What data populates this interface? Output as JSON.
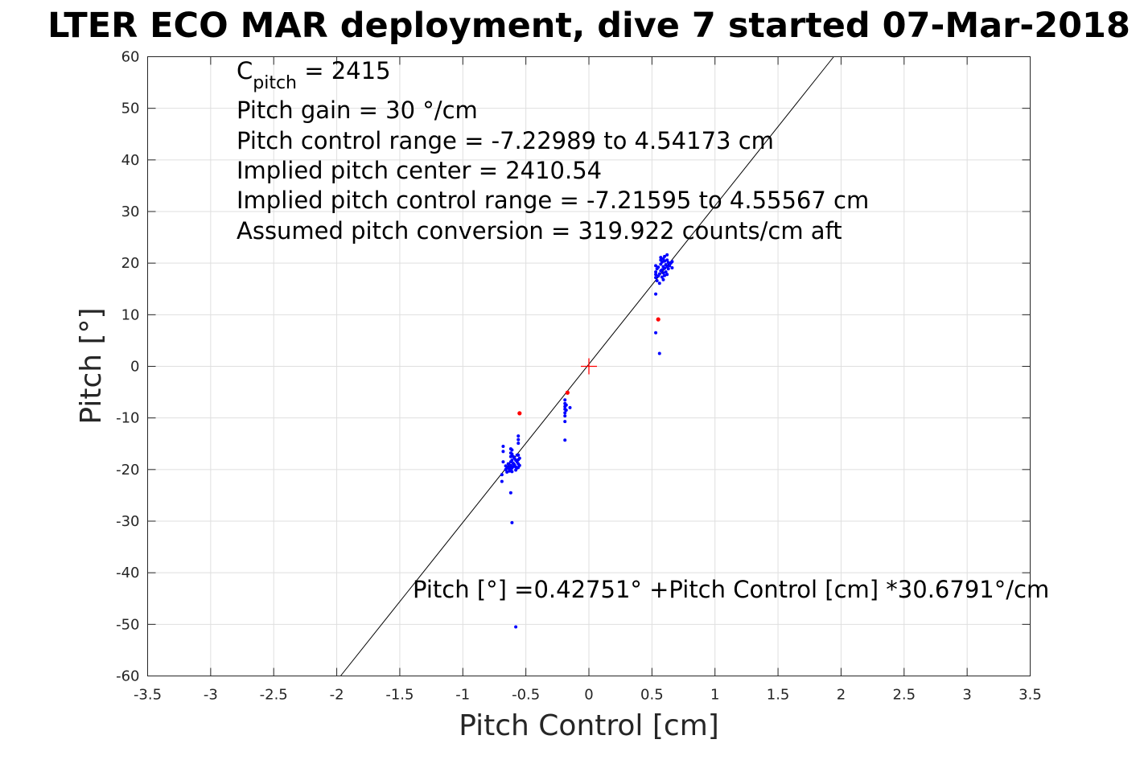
{
  "chart_data": {
    "type": "scatter",
    "title": "LTER ECO MAR deployment, dive 7 started 07-Mar-2018",
    "xlabel": "Pitch Control [cm]",
    "ylabel": "Pitch [°]",
    "xlim": [
      -3.5,
      3.5
    ],
    "ylim": [
      -60,
      60
    ],
    "xticks": [
      -3.5,
      -3,
      -2.5,
      -2,
      -1.5,
      -1,
      -0.5,
      0,
      0.5,
      1,
      1.5,
      2,
      2.5,
      3,
      3.5
    ],
    "xtick_labels": [
      "-3.5",
      "-3",
      "-2.5",
      "-2",
      "-1.5",
      "-1",
      "-0.5",
      "0",
      "0.5",
      "1",
      "1.5",
      "2",
      "2.5",
      "3",
      "3.5"
    ],
    "yticks": [
      -60,
      -50,
      -40,
      -30,
      -20,
      -10,
      0,
      10,
      20,
      30,
      40,
      50,
      60
    ],
    "ytick_labels": [
      "-60",
      "-50",
      "-40",
      "-30",
      "-20",
      "-10",
      "0",
      "10",
      "20",
      "30",
      "40",
      "50",
      "60"
    ],
    "grid": true,
    "annotations": {
      "c_pitch_base": "C",
      "c_pitch_sub": "pitch",
      "c_pitch_rest": " = 2415",
      "line2": "Pitch gain = 30 °/cm",
      "line3": "Pitch control range = -7.22989 to 4.54173 cm",
      "line4": "Implied pitch center = 2410.54",
      "line5": "Implied pitch control range = -7.21595 to 4.55567 cm",
      "line6": "Assumed pitch conversion = 319.922 counts/cm aft",
      "fit_equation": "Pitch [°] =0.42751° +Pitch Control [cm] *30.6791°/cm"
    },
    "fit": {
      "intercept": 0.42751,
      "slope": 30.6791
    },
    "center_marker": {
      "x": 0,
      "y": 0,
      "color": "#ff0000"
    },
    "series": [
      {
        "color": "#0000ff",
        "points": [
          [
            -0.68,
            -15.5
          ],
          [
            -0.68,
            -16.5
          ],
          [
            -0.68,
            -18.5
          ],
          [
            -0.69,
            -21
          ],
          [
            -0.69,
            -22.3
          ],
          [
            -0.66,
            -19.3
          ],
          [
            -0.66,
            -20
          ],
          [
            -0.65,
            -19.6
          ],
          [
            -0.65,
            -20.5
          ],
          [
            -0.64,
            -18.9
          ],
          [
            -0.64,
            -19.8
          ],
          [
            -0.63,
            -19.5
          ],
          [
            -0.63,
            -20.3
          ],
          [
            -0.62,
            -16
          ],
          [
            -0.62,
            -16.8
          ],
          [
            -0.62,
            -17.5
          ],
          [
            -0.62,
            -18.5
          ],
          [
            -0.62,
            -19.2
          ],
          [
            -0.62,
            -19.9
          ],
          [
            -0.62,
            -24.5
          ],
          [
            -0.61,
            -16.2
          ],
          [
            -0.61,
            -17
          ],
          [
            -0.61,
            -18.2
          ],
          [
            -0.61,
            -19.7
          ],
          [
            -0.61,
            -20.4
          ],
          [
            -0.6,
            -17.5
          ],
          [
            -0.6,
            -18.8
          ],
          [
            -0.6,
            -19.4
          ],
          [
            -0.59,
            -17.8
          ],
          [
            -0.59,
            -19.1
          ],
          [
            -0.58,
            -18.2
          ],
          [
            -0.58,
            -19.5
          ],
          [
            -0.58,
            -20.1
          ],
          [
            -0.57,
            -17.2
          ],
          [
            -0.57,
            -18.5
          ],
          [
            -0.57,
            -19.7
          ],
          [
            -0.56,
            -13.5
          ],
          [
            -0.56,
            -14.2
          ],
          [
            -0.56,
            -14.9
          ],
          [
            -0.56,
            -17.2
          ],
          [
            -0.56,
            -18.1
          ],
          [
            -0.56,
            -18.9
          ],
          [
            -0.56,
            -19.6
          ],
          [
            -0.55,
            -17.8
          ],
          [
            -0.55,
            -19.2
          ],
          [
            -0.61,
            -30.3
          ],
          [
            -0.58,
            -50.5
          ],
          [
            -0.19,
            -6.5
          ],
          [
            -0.19,
            -7.2
          ],
          [
            -0.19,
            -7.8
          ],
          [
            -0.19,
            -8.3
          ],
          [
            -0.19,
            -9
          ],
          [
            -0.19,
            -9.6
          ],
          [
            -0.19,
            -10.7
          ],
          [
            -0.19,
            -14.3
          ],
          [
            -0.18,
            -7.5
          ],
          [
            -0.18,
            -8.5
          ],
          [
            -0.15,
            -8
          ],
          [
            0.53,
            14
          ],
          [
            0.53,
            17.2
          ],
          [
            0.53,
            17.8
          ],
          [
            0.53,
            18.3
          ],
          [
            0.53,
            19.5
          ],
          [
            0.54,
            16.6
          ],
          [
            0.54,
            18.9
          ],
          [
            0.55,
            17.5
          ],
          [
            0.55,
            19.2
          ],
          [
            0.56,
            16.1
          ],
          [
            0.56,
            17.9
          ],
          [
            0.57,
            18.5
          ],
          [
            0.57,
            19.8
          ],
          [
            0.57,
            20.6
          ],
          [
            0.57,
            21.1
          ],
          [
            0.58,
            17.3
          ],
          [
            0.58,
            18.7
          ],
          [
            0.58,
            20.2
          ],
          [
            0.59,
            16.8
          ],
          [
            0.59,
            18.1
          ],
          [
            0.59,
            19.3
          ],
          [
            0.59,
            20.8
          ],
          [
            0.6,
            17.6
          ],
          [
            0.6,
            19
          ],
          [
            0.6,
            20.4
          ],
          [
            0.6,
            21.3
          ],
          [
            0.61,
            18.3
          ],
          [
            0.61,
            19.7
          ],
          [
            0.62,
            17.8
          ],
          [
            0.62,
            19.3
          ],
          [
            0.62,
            20.6
          ],
          [
            0.62,
            21.6
          ],
          [
            0.63,
            18.9
          ],
          [
            0.63,
            20.1
          ],
          [
            0.64,
            19.5
          ],
          [
            0.65,
            20
          ],
          [
            0.66,
            19.1
          ],
          [
            0.66,
            20.3
          ],
          [
            0.53,
            6.5
          ],
          [
            0.56,
            2.5
          ]
        ]
      },
      {
        "color": "#ff0000",
        "points": [
          [
            -0.55,
            -9.1
          ],
          [
            -0.17,
            -5.1
          ],
          [
            0.55,
            9.1
          ]
        ]
      }
    ]
  }
}
